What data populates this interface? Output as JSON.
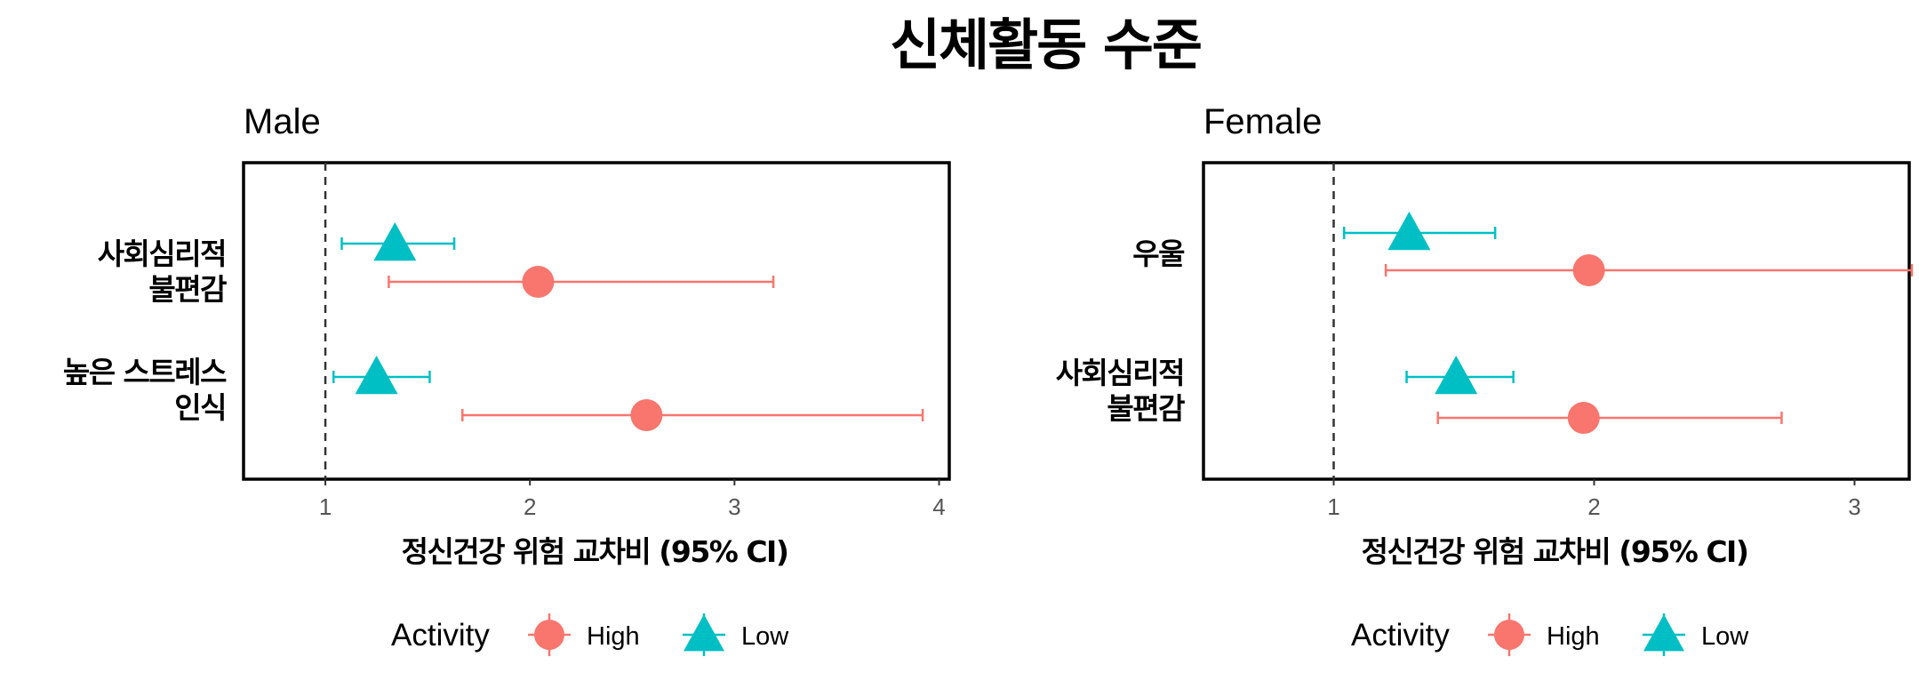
{
  "figure_title": "신체활동 수준",
  "chart_data": [
    {
      "type": "forest",
      "title": "Male",
      "xlabel": "정신건강 위험 교차비 (95% CI)",
      "xlim": [
        0.6,
        4.05
      ],
      "xticks": [
        1,
        2,
        3,
        4
      ],
      "reference_line": 1,
      "categories": [
        {
          "label_lines": [
            "사회심리적",
            "불편감"
          ]
        },
        {
          "label_lines": [
            "높은 스트레스",
            "인식"
          ]
        }
      ],
      "series": [
        {
          "name": "Low",
          "color": "#00BFC4",
          "shape": "triangle",
          "points": [
            {
              "category": 0,
              "or": 1.34,
              "lo": 1.08,
              "hi": 1.63
            },
            {
              "category": 1,
              "or": 1.25,
              "lo": 1.04,
              "hi": 1.51
            }
          ]
        },
        {
          "name": "High",
          "color": "#F8766D",
          "shape": "circle",
          "points": [
            {
              "category": 0,
              "or": 2.04,
              "lo": 1.31,
              "hi": 3.19
            },
            {
              "category": 1,
              "or": 2.57,
              "lo": 1.67,
              "hi": 3.92
            }
          ]
        }
      ]
    },
    {
      "type": "forest",
      "title": "Female",
      "xlabel": "정신건강 위험 교차비 (95% CI)",
      "xlim": [
        0.5,
        3.21
      ],
      "xticks": [
        1,
        2,
        3
      ],
      "reference_line": 1,
      "categories": [
        {
          "label_lines": [
            "우울"
          ]
        },
        {
          "label_lines": [
            "사회심리적",
            "불편감"
          ]
        }
      ],
      "series": [
        {
          "name": "Low",
          "color": "#00BFC4",
          "shape": "triangle",
          "points": [
            {
              "category": 0,
              "or": 1.29,
              "lo": 1.04,
              "hi": 1.62
            },
            {
              "category": 1,
              "or": 1.47,
              "lo": 1.28,
              "hi": 1.69
            }
          ]
        },
        {
          "name": "High",
          "color": "#F8766D",
          "shape": "circle",
          "points": [
            {
              "category": 0,
              "or": 1.98,
              "lo": 1.2,
              "hi": 3.22
            },
            {
              "category": 1,
              "or": 1.96,
              "lo": 1.4,
              "hi": 2.72
            }
          ]
        }
      ]
    }
  ],
  "legend": {
    "title": "Activity",
    "items": [
      {
        "label": "High",
        "color": "#F8766D",
        "shape": "circle"
      },
      {
        "label": "Low",
        "color": "#00BFC4",
        "shape": "triangle"
      }
    ]
  }
}
